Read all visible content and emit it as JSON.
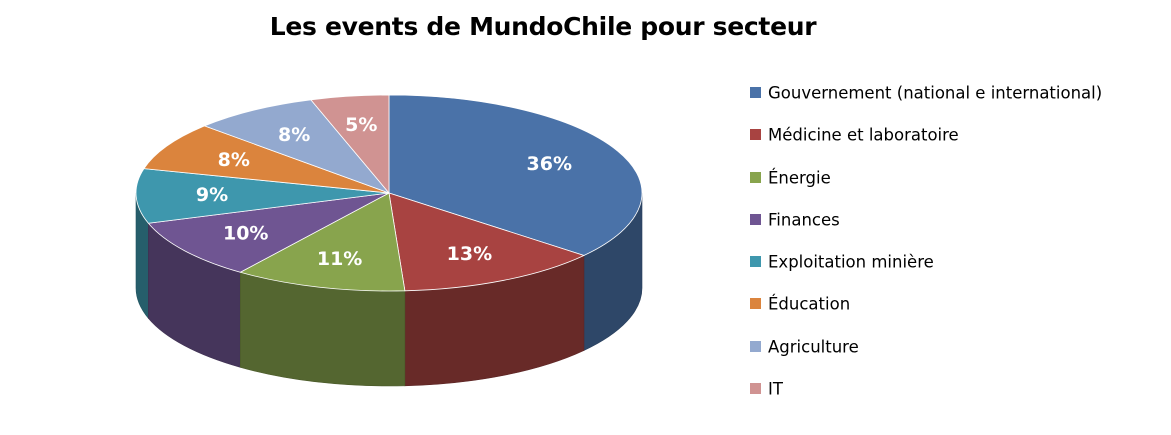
{
  "chart_data": {
    "type": "pie",
    "title": "Les events de MundoChile pour secteur",
    "legend_position": "right",
    "slices": [
      {
        "label": "Gouvernement (national e international)",
        "value": 36,
        "display": "36%",
        "color": "#4A72A8"
      },
      {
        "label": "Médicine et laboratoire",
        "value": 13,
        "display": "13%",
        "color": "#A84341"
      },
      {
        "label": "Énergie",
        "value": 11,
        "display": "11%",
        "color": "#88A44D"
      },
      {
        "label": "Finances",
        "value": 10,
        "display": "10%",
        "color": "#6F5592"
      },
      {
        "label": "Exploitation minière",
        "value": 9,
        "display": "9%",
        "color": "#3E97AD"
      },
      {
        "label": "Éducation",
        "value": 8,
        "display": "8%",
        "color": "#DB843D"
      },
      {
        "label": "Agriculture",
        "value": 8,
        "display": "8%",
        "color": "#93A9CF"
      },
      {
        "label": "IT",
        "value": 5,
        "display": "5%",
        "color": "#D09392"
      }
    ]
  }
}
